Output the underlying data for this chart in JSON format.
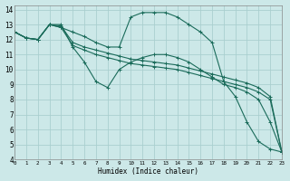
{
  "xlabel": "Humidex (Indice chaleur)",
  "background_color": "#cce8e8",
  "grid_color": "#aacfcf",
  "line_color": "#1a6b5a",
  "xlim": [
    0,
    23
  ],
  "ylim": [
    4,
    14.3
  ],
  "xticks": [
    0,
    1,
    2,
    3,
    4,
    5,
    6,
    7,
    8,
    9,
    10,
    11,
    12,
    13,
    14,
    15,
    16,
    17,
    18,
    19,
    20,
    21,
    22,
    23
  ],
  "yticks": [
    4,
    5,
    6,
    7,
    8,
    9,
    10,
    11,
    12,
    13,
    14
  ],
  "series": [
    {
      "x": [
        0,
        1,
        2,
        3,
        4,
        5,
        6,
        7,
        8,
        9,
        10,
        11,
        12,
        13,
        14,
        15,
        16,
        17,
        18,
        19,
        20,
        21,
        22,
        23
      ],
      "y": [
        12.5,
        12.1,
        12.0,
        13.0,
        12.8,
        12.5,
        12.2,
        11.8,
        11.5,
        11.5,
        13.5,
        13.8,
        13.8,
        13.8,
        13.5,
        13.0,
        12.5,
        11.8,
        9.2,
        8.2,
        6.5,
        5.2,
        4.7,
        4.5
      ]
    },
    {
      "x": [
        0,
        1,
        2,
        3,
        4,
        5,
        6,
        7,
        8,
        9,
        10,
        11,
        12,
        13,
        14,
        15,
        16,
        17,
        18,
        19,
        20,
        21,
        22,
        23
      ],
      "y": [
        12.5,
        12.1,
        12.0,
        13.0,
        13.0,
        11.5,
        10.5,
        9.2,
        8.8,
        10.0,
        10.5,
        10.8,
        11.0,
        11.0,
        10.8,
        10.5,
        10.0,
        9.5,
        9.0,
        8.8,
        8.5,
        8.0,
        6.5,
        4.5
      ]
    },
    {
      "x": [
        0,
        1,
        2,
        3,
        4,
        5,
        6,
        7,
        8,
        9,
        10,
        11,
        12,
        13,
        14,
        15,
        16,
        17,
        18,
        19,
        20,
        21,
        22,
        23
      ],
      "y": [
        12.5,
        12.1,
        12.0,
        13.0,
        12.9,
        11.8,
        11.5,
        11.3,
        11.1,
        10.9,
        10.7,
        10.6,
        10.5,
        10.4,
        10.3,
        10.1,
        9.9,
        9.7,
        9.5,
        9.3,
        9.1,
        8.8,
        8.2,
        4.5
      ]
    },
    {
      "x": [
        0,
        1,
        2,
        3,
        4,
        5,
        6,
        7,
        8,
        9,
        10,
        11,
        12,
        13,
        14,
        15,
        16,
        17,
        18,
        19,
        20,
        21,
        22,
        23
      ],
      "y": [
        12.5,
        12.1,
        12.0,
        13.0,
        12.8,
        11.6,
        11.3,
        11.0,
        10.8,
        10.6,
        10.4,
        10.3,
        10.2,
        10.1,
        10.0,
        9.8,
        9.6,
        9.4,
        9.2,
        9.0,
        8.8,
        8.5,
        8.0,
        4.5
      ]
    }
  ]
}
